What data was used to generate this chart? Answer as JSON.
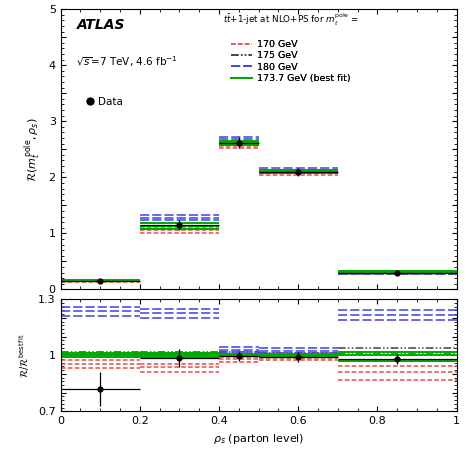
{
  "rho_s_bins_centers": [
    0.1,
    0.3,
    0.45,
    0.6,
    0.85
  ],
  "rho_s_bins_edges": [
    0.0,
    0.2,
    0.4,
    0.5,
    0.7,
    1.0
  ],
  "data_y": [
    0.15,
    1.15,
    2.62,
    2.1,
    0.3
  ],
  "data_yerr_lo": [
    0.04,
    0.09,
    0.1,
    0.07,
    0.04
  ],
  "data_yerr_hi": [
    0.04,
    0.09,
    0.1,
    0.07,
    0.04
  ],
  "theory_170_ylo": [
    0.14,
    1.01,
    2.52,
    2.04,
    0.27
  ],
  "theory_170_ymid": [
    0.155,
    1.06,
    2.56,
    2.08,
    0.285
  ],
  "theory_170_yhi": [
    0.165,
    1.11,
    2.6,
    2.12,
    0.3
  ],
  "theory_175_ylo": [
    0.15,
    1.08,
    2.58,
    2.07,
    0.29
  ],
  "theory_175_ymid": [
    0.16,
    1.13,
    2.61,
    2.1,
    0.31
  ],
  "theory_175_yhi": [
    0.17,
    1.18,
    2.64,
    2.13,
    0.325
  ],
  "theory_180_ylo": [
    0.155,
    1.23,
    2.65,
    2.1,
    0.28
  ],
  "theory_180_ymid": [
    0.165,
    1.28,
    2.68,
    2.13,
    0.305
  ],
  "theory_180_yhi": [
    0.175,
    1.33,
    2.71,
    2.16,
    0.33
  ],
  "theory_bf_ylo": [
    0.15,
    1.08,
    2.58,
    2.07,
    0.29
  ],
  "theory_bf_ymid": [
    0.16,
    1.13,
    2.61,
    2.1,
    0.31
  ],
  "theory_bf_yhi": [
    0.17,
    1.18,
    2.64,
    2.13,
    0.325
  ],
  "ratio_data_y": [
    0.82,
    0.985,
    0.995,
    0.99,
    0.98
  ],
  "ratio_data_yerr": [
    0.09,
    0.05,
    0.025,
    0.025,
    0.025
  ],
  "ratio_170_lo": [
    0.93,
    0.91,
    0.965,
    0.973,
    0.87
  ],
  "ratio_170_mid": [
    0.955,
    0.935,
    0.98,
    0.986,
    0.91
  ],
  "ratio_170_hi": [
    0.975,
    0.955,
    0.993,
    0.998,
    0.945
  ],
  "ratio_175_lo": [
    0.99,
    0.99,
    0.998,
    0.995,
    0.97
  ],
  "ratio_175_mid": [
    1.005,
    1.005,
    1.005,
    1.003,
    1.005
  ],
  "ratio_175_hi": [
    1.02,
    1.02,
    1.015,
    1.012,
    1.04
  ],
  "ratio_180_lo": [
    1.21,
    1.2,
    1.015,
    1.01,
    1.19
  ],
  "ratio_180_mid": [
    1.235,
    1.225,
    1.03,
    1.025,
    1.215
  ],
  "ratio_180_hi": [
    1.26,
    1.25,
    1.045,
    1.04,
    1.24
  ],
  "ratio_bf_lo": [
    0.99,
    0.99,
    0.998,
    0.995,
    0.97
  ],
  "ratio_bf_mid": [
    1.0,
    1.0,
    1.0,
    1.0,
    1.0
  ],
  "ratio_bf_hi": [
    1.01,
    1.01,
    1.005,
    1.005,
    1.02
  ],
  "color_170": "#e05050",
  "color_175": "#404040",
  "color_180": "#4040dd",
  "color_bestfit": "#00aa00",
  "color_data": "black",
  "main_ylim": [
    0,
    5
  ],
  "ratio_ylim": [
    0.7,
    1.3
  ],
  "xlabel": "$\\rho_s$ (parton level)",
  "ylabel_main": "$\\mathcal{R}(m_t^{\\rm pole}, \\rho_s)$",
  "ylabel_ratio": "$\\mathcal{R} / \\mathcal{R}^{\\rm best\\, fit}$",
  "atlas_label": "ATLAS",
  "energy_label": "$\\sqrt{s}$=7 TeV, 4.6 fb$^{-1}$",
  "legend_title": "$t\\bar{t}$+1-jet at NLO+PS for $m_t^{\\rm pole}$ ="
}
